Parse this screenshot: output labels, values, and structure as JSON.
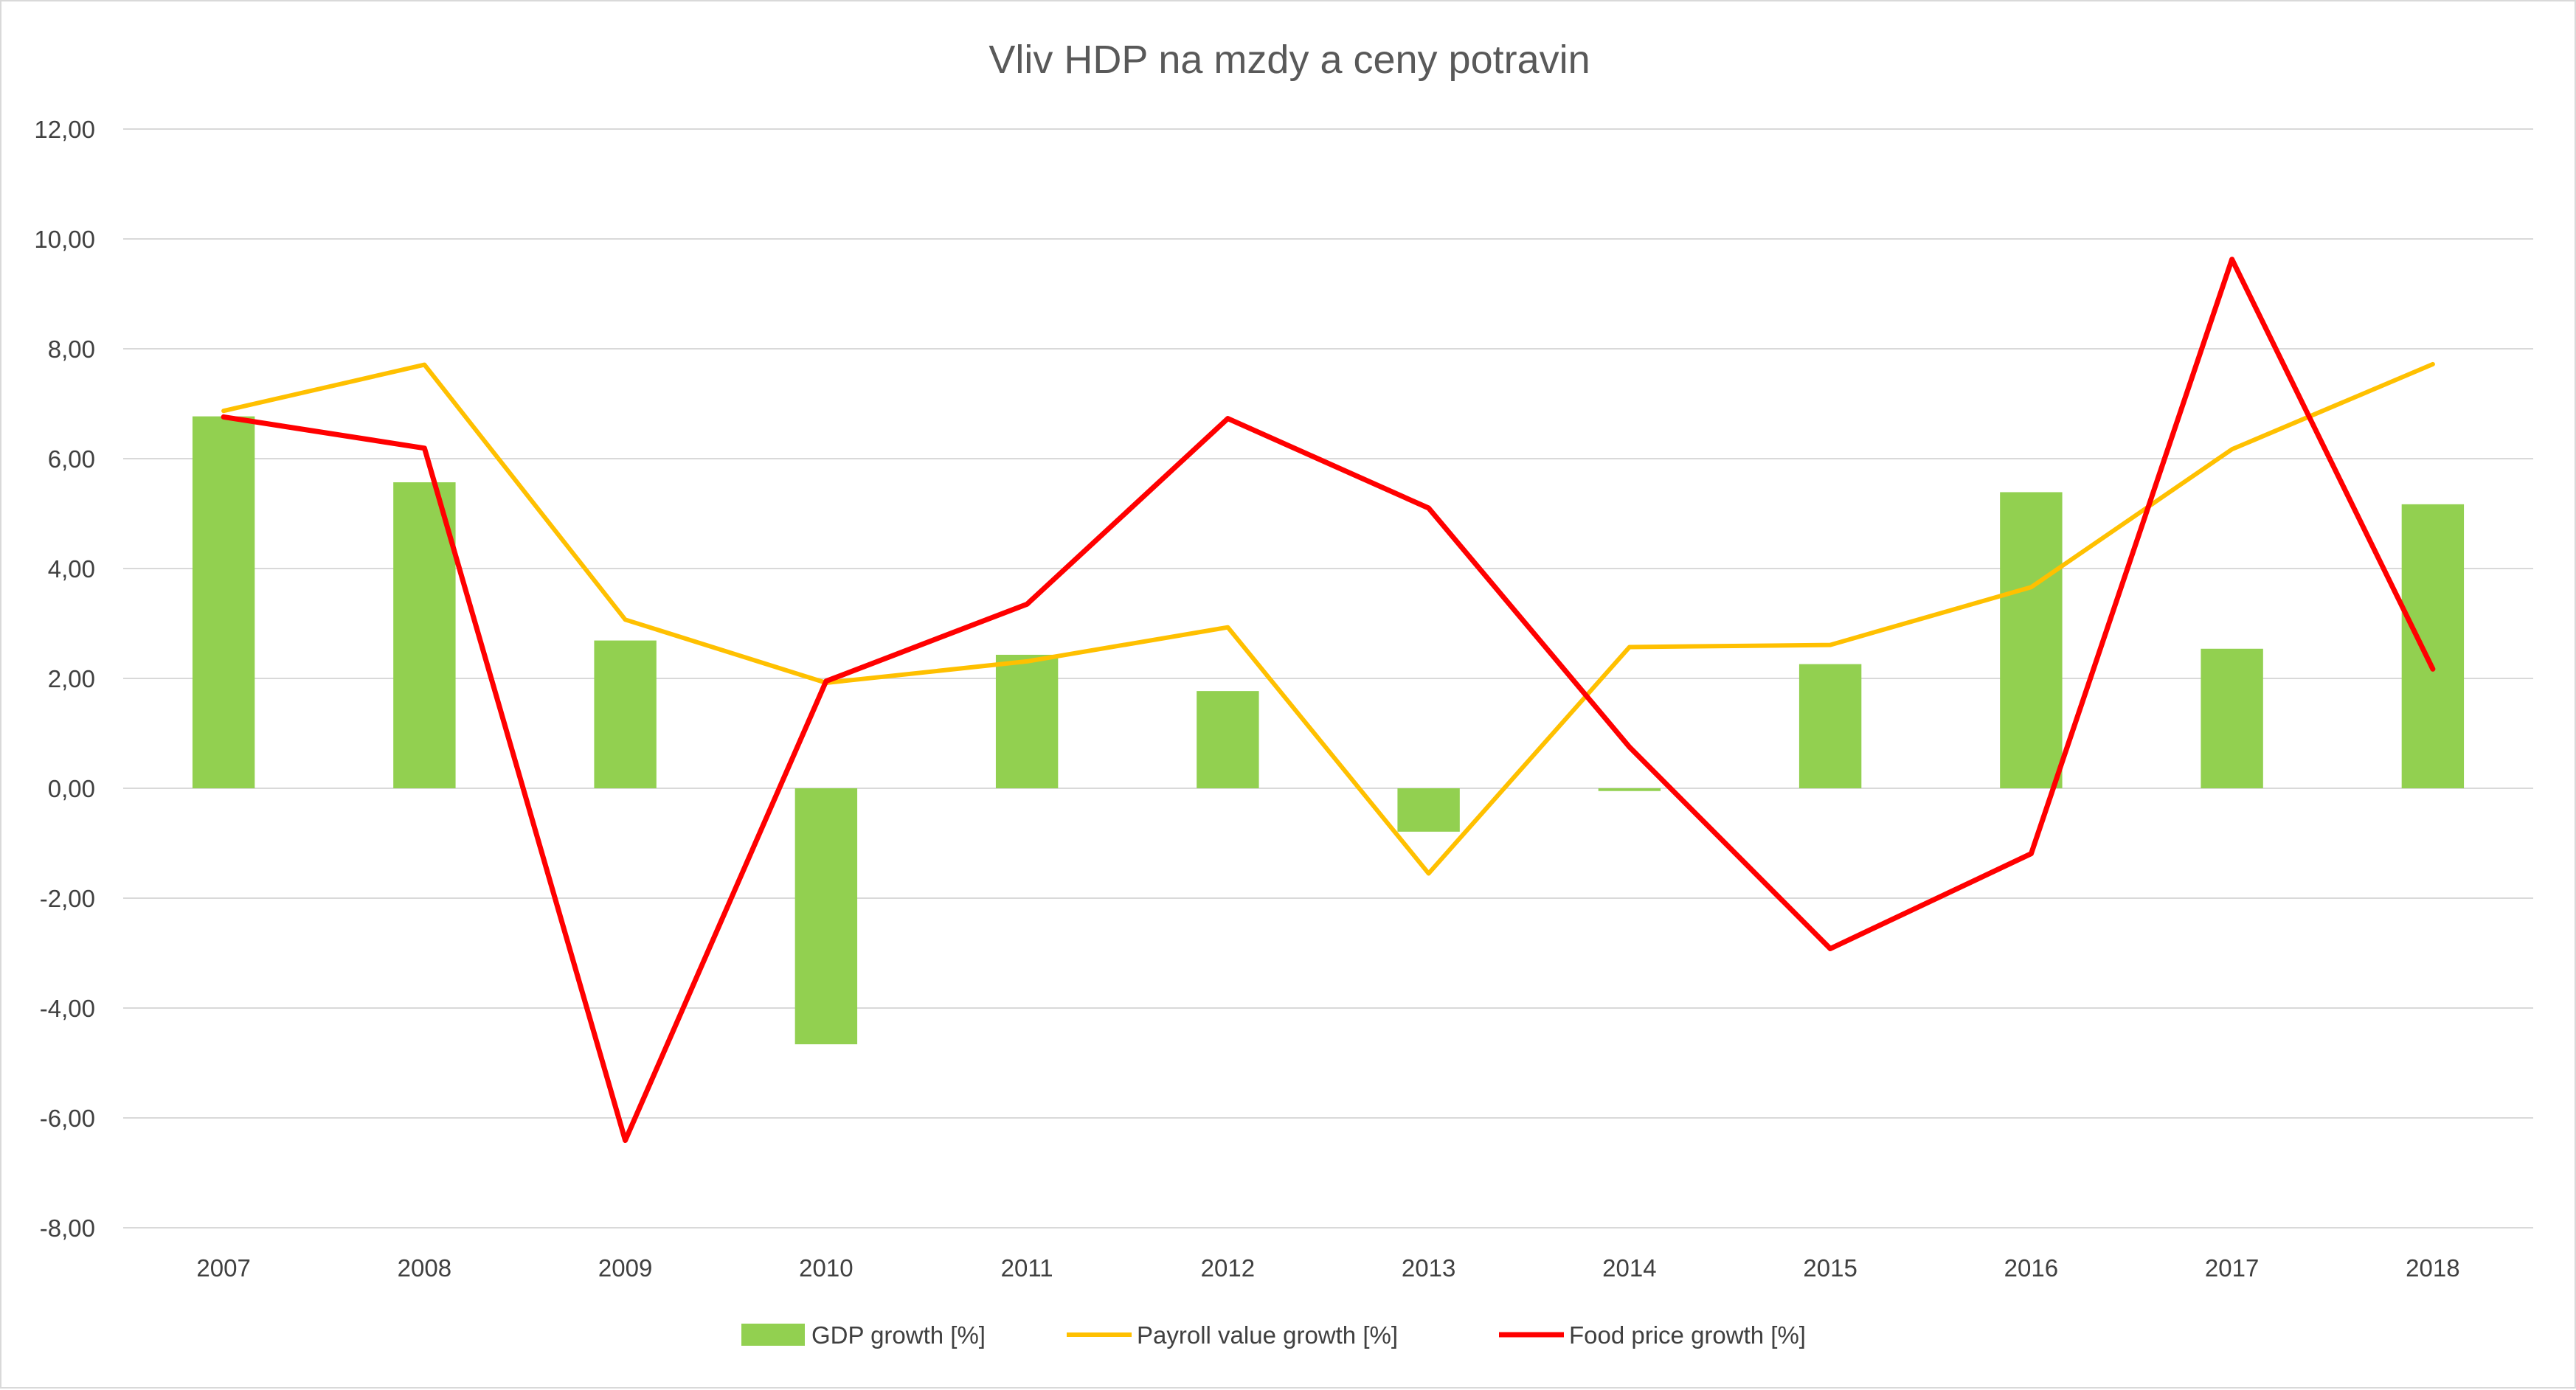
{
  "chart_data": {
    "type": "bar",
    "title": "Vliv HDP na mzdy a ceny potravin",
    "xlabel": "",
    "ylabel": "",
    "categories": [
      "2007",
      "2008",
      "2009",
      "2010",
      "2011",
      "2012",
      "2013",
      "2014",
      "2015",
      "2016",
      "2017",
      "2018"
    ],
    "ylim": [
      -8,
      12
    ],
    "yticks": [
      12,
      10,
      8,
      6,
      4,
      2,
      0,
      -2,
      -4,
      -6,
      -8
    ],
    "ytick_labels": [
      "12,00",
      "10,00",
      "8,00",
      "6,00",
      "4,00",
      "2,00",
      "0,00",
      "-2,00",
      "-4,00",
      "-6,00",
      "-8,00"
    ],
    "grid": true,
    "legend_position": "bottom",
    "series": [
      {
        "name": "GDP growth [%]",
        "type": "bar",
        "color": "#92d050",
        "values": [
          6.77,
          5.57,
          2.69,
          -4.66,
          2.43,
          1.77,
          -0.79,
          -0.05,
          2.26,
          5.39,
          2.54,
          5.17
        ]
      },
      {
        "name": "Payroll value growth [%]",
        "type": "line",
        "color": "#ffc000",
        "values": [
          6.87,
          7.71,
          3.07,
          1.92,
          2.31,
          2.93,
          -1.55,
          2.57,
          2.61,
          3.66,
          6.17,
          7.72
        ]
      },
      {
        "name": "Food price growth [%]",
        "type": "line",
        "color": "#ff0000",
        "values": [
          6.76,
          6.19,
          -6.41,
          1.95,
          3.35,
          6.73,
          5.1,
          0.75,
          -2.92,
          -1.19,
          9.63,
          2.17
        ]
      }
    ]
  }
}
